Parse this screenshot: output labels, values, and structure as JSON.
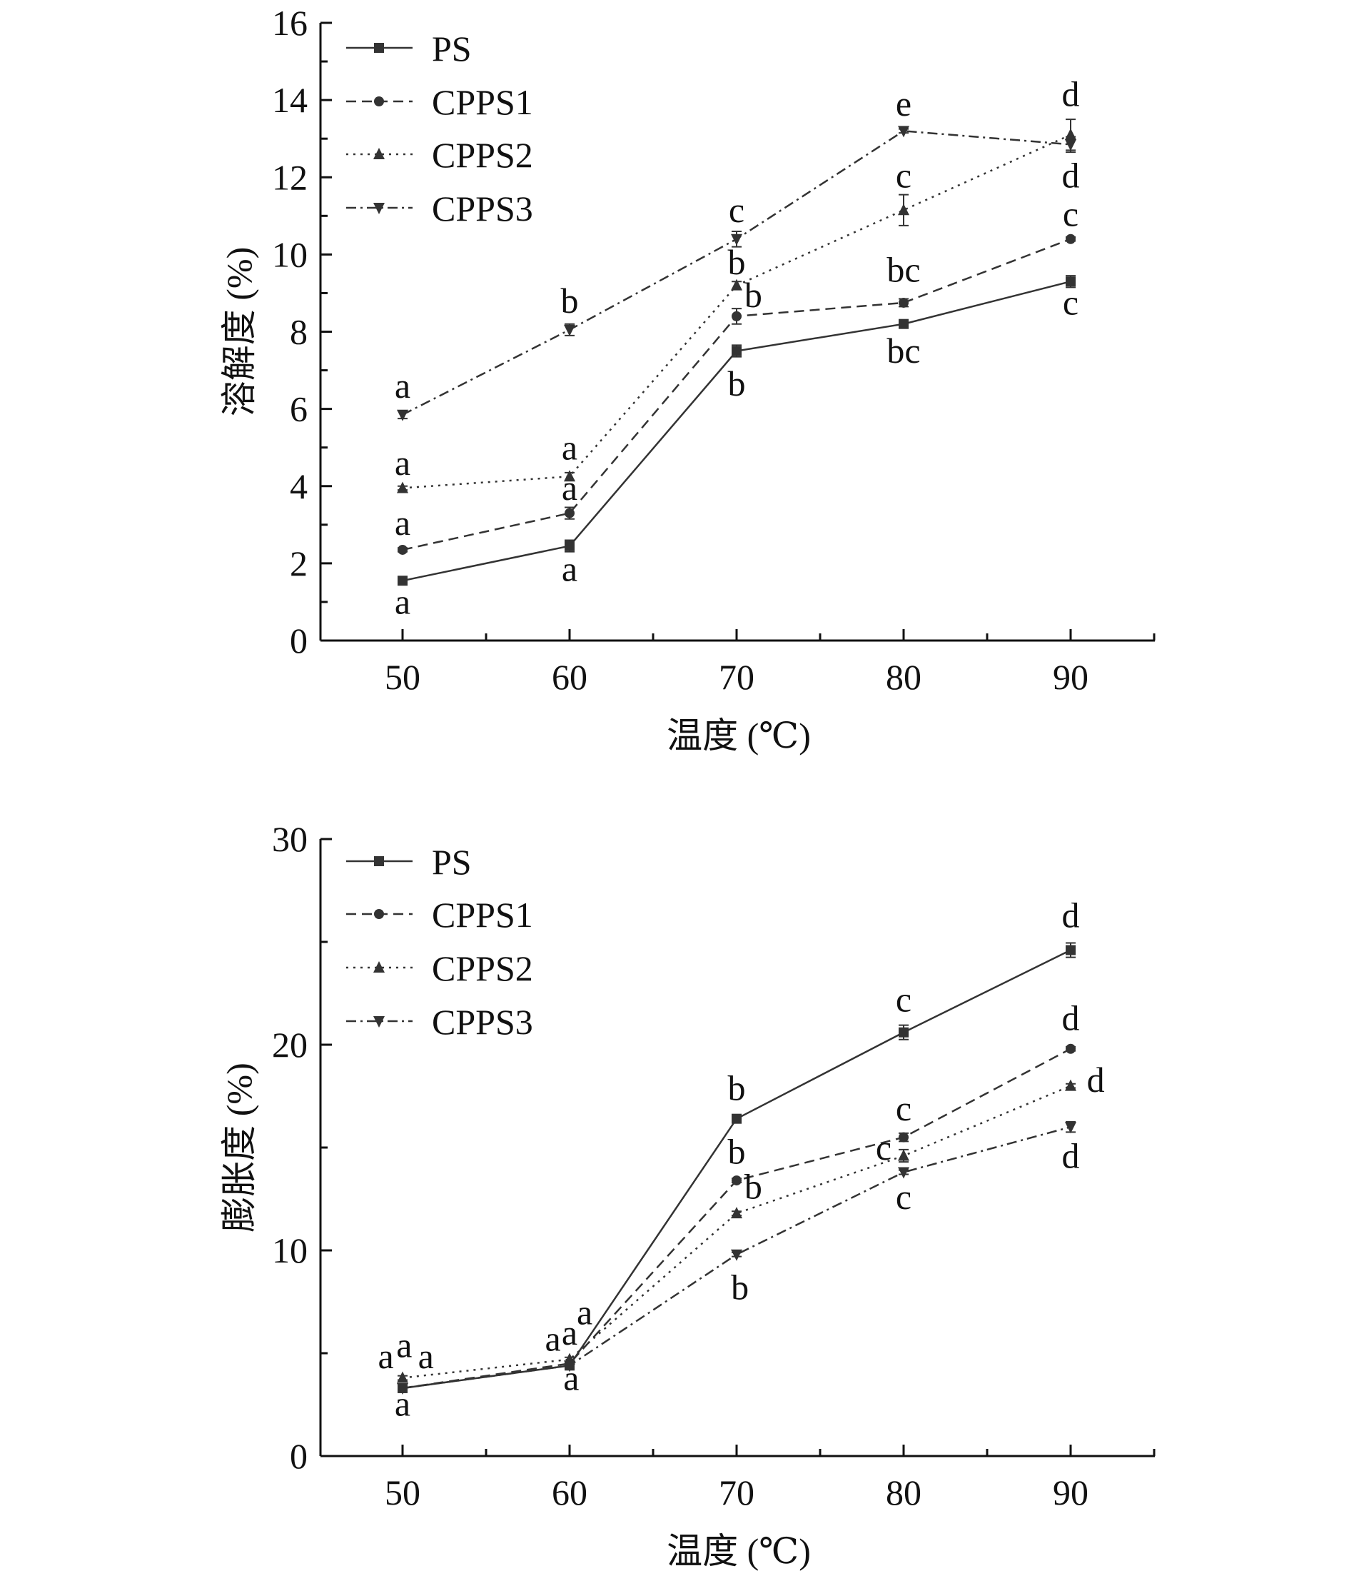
{
  "chart_data": [
    {
      "type": "line",
      "xlabel": "温度 (℃)",
      "ylabel": "溶解度 (%)",
      "x": [
        50,
        60,
        70,
        80,
        90
      ],
      "xticks": [
        "50",
        "60",
        "70",
        "80",
        "90"
      ],
      "xlim": [
        45,
        95
      ],
      "ylim": [
        0,
        16
      ],
      "yticks": [
        "0",
        "2",
        "4",
        "6",
        "8",
        "10",
        "12",
        "14",
        "16"
      ],
      "legend_position": "top-left",
      "grid": false,
      "series": [
        {
          "name": "PS",
          "values": [
            1.55,
            2.45,
            7.5,
            8.2,
            9.3
          ],
          "marker": "square",
          "dash": "solid",
          "errors": [
            0.05,
            0.15,
            0.15,
            0.05,
            0.15
          ]
        },
        {
          "name": "CPPS1",
          "values": [
            2.35,
            3.3,
            8.4,
            8.75,
            10.4
          ],
          "marker": "circle",
          "dash": "dashed",
          "errors": [
            0.05,
            0.15,
            0.2,
            0.1,
            0.05
          ]
        },
        {
          "name": "CPPS2",
          "values": [
            3.95,
            4.25,
            9.2,
            11.15,
            13.1
          ],
          "marker": "triangle-up",
          "dash": "dotted",
          "errors": [
            0.05,
            0.1,
            0.1,
            0.4,
            0.4
          ]
        },
        {
          "name": "CPPS3",
          "values": [
            5.85,
            8.05,
            10.4,
            13.2,
            12.85
          ],
          "marker": "triangle-down",
          "dash": "dashdot",
          "errors": [
            0.1,
            0.15,
            0.2,
            0.05,
            0.2
          ]
        }
      ],
      "annotations": [
        {
          "text": "a",
          "x": 50,
          "y": 6.55
        },
        {
          "text": "a",
          "x": 50,
          "y": 4.55
        },
        {
          "text": "a",
          "x": 50,
          "y": 3.0
        },
        {
          "text": "a",
          "x": 50,
          "y": 0.95
        },
        {
          "text": "b",
          "x": 60,
          "y": 8.75
        },
        {
          "text": "a",
          "x": 60,
          "y": 4.95
        },
        {
          "text": "a",
          "x": 60,
          "y": 3.9
        },
        {
          "text": "a",
          "x": 60,
          "y": 1.8
        },
        {
          "text": "c",
          "x": 70,
          "y": 11.1
        },
        {
          "text": "b",
          "x": 70,
          "y": 9.75
        },
        {
          "text": "b",
          "x": 71,
          "y": 8.9
        },
        {
          "text": "b",
          "x": 70,
          "y": 6.6
        },
        {
          "text": "e",
          "x": 80,
          "y": 13.85
        },
        {
          "text": "c",
          "x": 80,
          "y": 12.0
        },
        {
          "text": "bc",
          "x": 80,
          "y": 9.55
        },
        {
          "text": "bc",
          "x": 80,
          "y": 7.45
        },
        {
          "text": "d",
          "x": 90,
          "y": 14.1
        },
        {
          "text": "d",
          "x": 90,
          "y": 12.0
        },
        {
          "text": "c",
          "x": 90,
          "y": 11.0
        },
        {
          "text": "c",
          "x": 90,
          "y": 8.7
        }
      ]
    },
    {
      "type": "line",
      "xlabel": "温度 (℃)",
      "ylabel": "膨胀度 (%)",
      "x": [
        50,
        60,
        70,
        80,
        90
      ],
      "xticks": [
        "50",
        "60",
        "70",
        "80",
        "90"
      ],
      "xlim": [
        45,
        95
      ],
      "ylim": [
        0,
        30
      ],
      "yticks": [
        "0",
        "10",
        "20",
        "30"
      ],
      "legend_position": "top-left",
      "grid": false,
      "series": [
        {
          "name": "PS",
          "values": [
            3.3,
            4.4,
            16.4,
            20.6,
            24.6
          ],
          "marker": "square",
          "dash": "solid",
          "errors": [
            0.1,
            0.1,
            0.1,
            0.35,
            0.35
          ]
        },
        {
          "name": "CPPS1",
          "values": [
            3.3,
            4.5,
            13.4,
            15.5,
            19.8
          ],
          "marker": "circle",
          "dash": "dashed",
          "errors": [
            0.1,
            0.1,
            0.1,
            0.2,
            0.1
          ]
        },
        {
          "name": "CPPS2",
          "values": [
            3.8,
            4.7,
            11.8,
            14.6,
            18.0
          ],
          "marker": "triangle-up",
          "dash": "dotted",
          "errors": [
            0.1,
            0.1,
            0.1,
            0.3,
            0.1
          ]
        },
        {
          "name": "CPPS3",
          "values": [
            3.3,
            4.4,
            9.8,
            13.8,
            16.0
          ],
          "marker": "triangle-down",
          "dash": "dashdot",
          "errors": [
            0.1,
            0.1,
            0.1,
            0.1,
            0.25
          ]
        }
      ],
      "annotations": [
        {
          "text": "a",
          "x": 49.0,
          "y": 4.75
        },
        {
          "text": "a",
          "x": 50.1,
          "y": 5.3
        },
        {
          "text": "a",
          "x": 51.4,
          "y": 4.75
        },
        {
          "text": "a",
          "x": 50,
          "y": 2.45
        },
        {
          "text": "a",
          "x": 59.0,
          "y": 5.6
        },
        {
          "text": "a",
          "x": 60,
          "y": 5.9
        },
        {
          "text": "a",
          "x": 60.9,
          "y": 6.9
        },
        {
          "text": "a",
          "x": 60.1,
          "y": 3.7
        },
        {
          "text": "b",
          "x": 70,
          "y": 17.8
        },
        {
          "text": "b",
          "x": 70,
          "y": 14.7
        },
        {
          "text": "b",
          "x": 71,
          "y": 13.0
        },
        {
          "text": "b",
          "x": 70.2,
          "y": 8.1
        },
        {
          "text": "c",
          "x": 80,
          "y": 22.1
        },
        {
          "text": "c",
          "x": 80,
          "y": 16.8
        },
        {
          "text": "c",
          "x": 78.8,
          "y": 14.9
        },
        {
          "text": "c",
          "x": 80,
          "y": 12.5
        },
        {
          "text": "d",
          "x": 90,
          "y": 26.2
        },
        {
          "text": "d",
          "x": 90,
          "y": 21.2
        },
        {
          "text": "d",
          "x": 91.5,
          "y": 18.2
        },
        {
          "text": "d",
          "x": 90,
          "y": 14.5
        }
      ]
    }
  ],
  "colors": {
    "line": "#333333",
    "axis": "#111111"
  }
}
